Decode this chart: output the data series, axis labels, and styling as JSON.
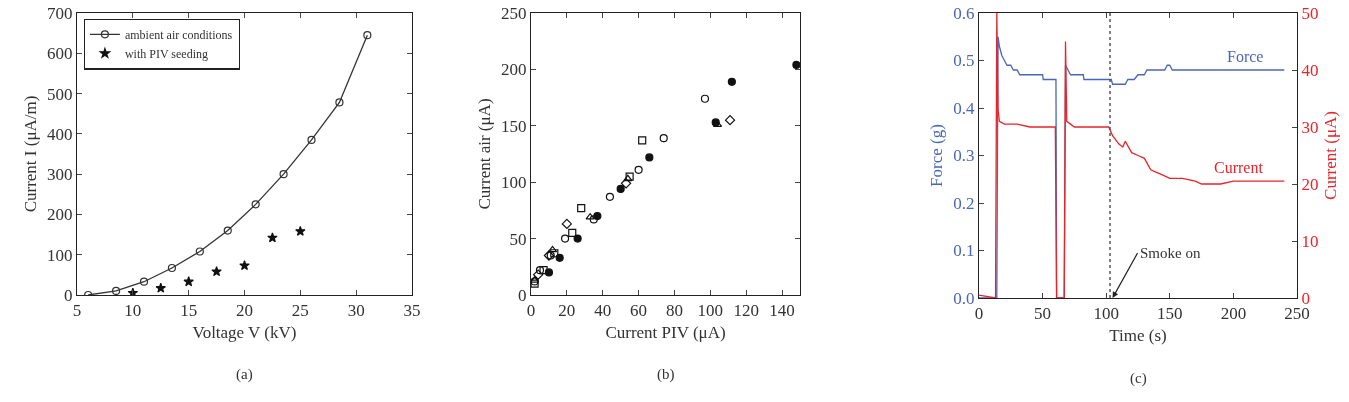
{
  "chart_data": [
    {
      "type": "line",
      "xlabel": "Voltage V (kV)",
      "ylabel": "Current I (μA/m)",
      "xlim": [
        5,
        35
      ],
      "xticks": [
        5,
        10,
        15,
        20,
        25,
        30,
        35
      ],
      "ylim": [
        0,
        700
      ],
      "yticks": [
        0,
        100,
        200,
        300,
        400,
        500,
        600,
        700
      ],
      "legend": "top left",
      "grid": false,
      "annotations": [
        "(a)"
      ],
      "series": [
        {
          "name": "ambient air conditions",
          "marker": "circle",
          "color": "#333333",
          "x": [
            6,
            8.5,
            11,
            13.5,
            16,
            18.5,
            21,
            23.5,
            26,
            28.5,
            31
          ],
          "values": [
            0,
            10,
            33,
            67,
            108,
            160,
            225,
            300,
            385,
            478,
            645
          ]
        },
        {
          "name": "with PIV seeding",
          "type": "scatter",
          "marker": "star",
          "color": "#111111",
          "x": [
            10,
            12.5,
            15,
            17.5,
            20,
            22.5,
            25
          ],
          "values": [
            5,
            17,
            33,
            58,
            73,
            142,
            158
          ]
        }
      ]
    },
    {
      "type": "scatter",
      "xlabel": "Current PIV (μA)",
      "ylabel": "Current air (μA)",
      "xlim": [
        0,
        150
      ],
      "xticks": [
        0,
        20,
        40,
        60,
        80,
        100,
        120,
        140
      ],
      "ylim": [
        0,
        250
      ],
      "yticks": [
        0,
        50,
        100,
        150,
        200,
        250
      ],
      "grid": false,
      "legend": false,
      "annotations": [
        "(b)"
      ],
      "series": [
        {
          "marker": "circle",
          "color": "#111111",
          "x": [
            10,
            16,
            26,
            37,
            50,
            66,
            103,
            112,
            148
          ],
          "values": [
            20,
            33,
            50,
            70,
            94,
            122,
            153,
            189,
            204
          ]
        },
        {
          "marker": "circle",
          "color": "#111111",
          "x": [
            2,
            5,
            11,
            19,
            35,
            44,
            60,
            74,
            97
          ],
          "values": [
            12,
            22,
            35,
            50,
            67,
            87,
            111,
            139,
            174
          ]
        },
        {
          "marker": "square",
          "color": "#111111",
          "x": [
            2,
            7,
            13,
            23,
            28,
            55,
            62
          ],
          "values": [
            10,
            22,
            37,
            55,
            77,
            105,
            137
          ]
        },
        {
          "marker": "triangle",
          "color": "#111111",
          "x": [
            2,
            12,
            33,
            54,
            104
          ],
          "values": [
            13,
            40,
            69,
            103,
            151
          ]
        },
        {
          "marker": "diamond",
          "color": "#111111",
          "x": [
            4,
            10,
            20,
            53,
            111
          ],
          "values": [
            18,
            35,
            63,
            99,
            155
          ]
        }
      ]
    },
    {
      "type": "line",
      "xlabel": "Time (s)",
      "ylabel": "Force (g)",
      "y2label": "Current (μA)",
      "xlim": [
        0,
        250
      ],
      "xticks": [
        0,
        50,
        100,
        150,
        200,
        250
      ],
      "ylim": [
        0,
        0.6
      ],
      "yticks": [
        {
          "value": 0,
          "label": "0.0"
        },
        0.1,
        0.2,
        0.3,
        0.4,
        0.5,
        0.6
      ],
      "y2lim": [
        0,
        50
      ],
      "y2ticks": [
        0,
        10,
        20,
        30,
        40,
        50
      ],
      "grid": false,
      "legend": false,
      "ref_lines": [
        {
          "axis": "x",
          "value": 103,
          "line_style": "dotted",
          "color": "#555555"
        }
      ],
      "annotations": [
        {
          "text": "Smoke on",
          "x": 105,
          "y": 0
        },
        "(c)"
      ],
      "series": [
        {
          "name": "Force",
          "color": "#4a66b8",
          "x": [
            0,
            14,
            14.5,
            15,
            16,
            18,
            20,
            22,
            25,
            27,
            30,
            32,
            50,
            50.5,
            60.5,
            61,
            62,
            67,
            68,
            70,
            72,
            75,
            82,
            82.5,
            98,
            100,
            104,
            105,
            115,
            117,
            119,
            122,
            125,
            130,
            132,
            135,
            146,
            148,
            150,
            152,
            240
          ],
          "values": [
            0,
            0,
            0.3,
            0.55,
            0.53,
            0.51,
            0.5,
            0.49,
            0.49,
            0.48,
            0.48,
            0.47,
            0.47,
            0.46,
            0.46,
            0,
            0,
            0,
            0.49,
            0.48,
            0.47,
            0.47,
            0.47,
            0.46,
            0.46,
            0.46,
            0.46,
            0.45,
            0.45,
            0.46,
            0.46,
            0.46,
            0.47,
            0.47,
            0.48,
            0.48,
            0.48,
            0.49,
            0.49,
            0.48,
            0.48
          ]
        },
        {
          "name": "Current",
          "axis": "y2",
          "color": "#e8242a",
          "x": [
            0,
            13,
            14,
            15,
            16,
            20,
            30,
            40,
            50,
            60,
            61,
            67,
            68,
            69,
            75,
            85,
            95,
            102,
            105,
            110,
            113,
            115,
            120,
            125,
            130,
            135,
            140,
            145,
            150,
            160,
            170,
            175,
            190,
            200,
            220,
            240
          ],
          "values": [
            0.5,
            0,
            50,
            33,
            31,
            30.5,
            30.5,
            30,
            30,
            30,
            0,
            0,
            45,
            31,
            30,
            30,
            30,
            30,
            28.5,
            27,
            26.5,
            27.5,
            25.5,
            25,
            24.5,
            22.5,
            22,
            21.5,
            21,
            21,
            20.5,
            20,
            20,
            20.5,
            20.5,
            20.5
          ]
        }
      ]
    }
  ]
}
